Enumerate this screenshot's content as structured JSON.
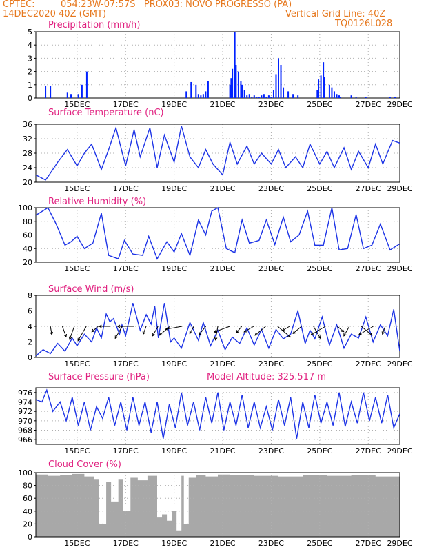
{
  "header": {
    "source": "CPTEC:",
    "location": "054:23W-07:57S   PROX03: NOVO PROGRESSO (PA)",
    "init_time": "14DEC2020 40Z (GMT)",
    "grid_note": "Vertical Grid Line: 40Z",
    "model_id": "TQ0126L028"
  },
  "colors": {
    "header": "#e6781e",
    "title": "#e0207f",
    "series": "#1c33e6",
    "bars": "#0022ff",
    "cloud": "#a8a8a8",
    "grid": "#b0b0b0"
  },
  "x_tick_labels": [
    "15DEC",
    "17DEC",
    "19DEC",
    "21DEC",
    "23DEC",
    "25DEC",
    "27DEC",
    "29DEC"
  ],
  "chart_data": [
    {
      "type": "bar",
      "title": "Precipitation (mm/h)",
      "ylim": [
        0,
        5
      ],
      "yticks": [
        0,
        1,
        2,
        3,
        4,
        5
      ],
      "x_unit": "days since 14DEC 00Z",
      "x": [
        0.4,
        0.6,
        1.3,
        1.45,
        1.75,
        1.9,
        2.1,
        6.2,
        6.4,
        6.6,
        6.7,
        6.8,
        6.9,
        7.0,
        7.1,
        8.0,
        8.05,
        8.1,
        8.2,
        8.25,
        8.35,
        8.45,
        8.5,
        8.6,
        8.7,
        8.8,
        8.9,
        9.0,
        9.1,
        9.2,
        9.3,
        9.4,
        9.5,
        9.6,
        9.7,
        9.8,
        9.9,
        10.0,
        10.1,
        10.2,
        10.4,
        10.6,
        10.8,
        11.6,
        11.65,
        11.75,
        11.85,
        11.9,
        12.1,
        12.2,
        12.3,
        12.4,
        12.5,
        12.55,
        13.0,
        13.2,
        13.6,
        14.6,
        14.8
      ],
      "values": [
        0.9,
        0.9,
        0.4,
        0.3,
        0.3,
        1.0,
        2.0,
        0.5,
        1.2,
        1.0,
        0.3,
        0.2,
        0.3,
        0.5,
        1.3,
        1.0,
        1.5,
        2.2,
        5.0,
        2.5,
        2.0,
        1.3,
        1.0,
        0.6,
        0.2,
        0.3,
        0.1,
        0.2,
        0.1,
        0.1,
        0.2,
        0.3,
        0.1,
        0.2,
        0.1,
        0.6,
        1.8,
        3.0,
        2.5,
        0.8,
        0.5,
        0.3,
        0.2,
        0.6,
        1.4,
        1.7,
        2.7,
        1.6,
        1.0,
        0.8,
        0.5,
        0.3,
        0.2,
        0.1,
        0.2,
        0.1,
        0.1,
        0.1,
        0.1
      ]
    },
    {
      "type": "line",
      "title": "Surface Temperature (nC)",
      "ylim": [
        20,
        36
      ],
      "yticks": [
        20,
        24,
        28,
        32,
        36
      ],
      "x": [
        0,
        0.4,
        0.55,
        0.9,
        1.3,
        1.7,
        2.0,
        2.3,
        2.7,
        3.0,
        3.3,
        3.7,
        4.05,
        4.3,
        4.7,
        5.0,
        5.3,
        5.7,
        6.0,
        6.35,
        6.7,
        7.0,
        7.3,
        7.7,
        8.0,
        8.3,
        8.7,
        9.0,
        9.3,
        9.7,
        10.0,
        10.3,
        10.7,
        11.0,
        11.3,
        11.7,
        12.0,
        12.3,
        12.7,
        13.0,
        13.3,
        13.7,
        14.0,
        14.3,
        14.7,
        15.0
      ],
      "values": [
        22,
        20.6,
        22,
        25.5,
        29,
        24.5,
        28,
        30.5,
        23.5,
        29,
        35,
        24.5,
        34.5,
        27,
        35,
        24,
        33,
        25.5,
        35.5,
        27,
        24,
        29,
        25,
        22,
        31,
        25,
        30,
        25,
        28,
        25,
        29,
        24,
        27,
        24,
        30.5,
        25,
        28.5,
        24,
        29.5,
        23.5,
        28.5,
        24,
        30.5,
        25,
        31.5,
        30.8
      ]
    },
    {
      "type": "line",
      "title": "Relative Humidity (%)",
      "ylim": [
        20,
        100
      ],
      "yticks": [
        20,
        40,
        60,
        80,
        100
      ],
      "x": [
        0,
        0.5,
        0.85,
        1.2,
        1.45,
        1.7,
        2.0,
        2.35,
        2.7,
        3.0,
        3.4,
        3.65,
        4.0,
        4.4,
        4.65,
        5.0,
        5.4,
        5.7,
        6.0,
        6.35,
        6.7,
        7.0,
        7.25,
        7.5,
        7.85,
        8.2,
        8.5,
        8.8,
        9.2,
        9.5,
        9.85,
        10.2,
        10.5,
        10.85,
        11.2,
        11.5,
        11.85,
        12.2,
        12.5,
        12.85,
        13.2,
        13.5,
        13.85,
        14.2,
        14.6,
        15.0
      ],
      "values": [
        89,
        100,
        75,
        45,
        50,
        58,
        40,
        48,
        92,
        30,
        25,
        52,
        32,
        30,
        58,
        25,
        50,
        35,
        62,
        30,
        82,
        60,
        95,
        100,
        40,
        34,
        82,
        48,
        52,
        82,
        46,
        86,
        50,
        60,
        95,
        45,
        45,
        100,
        38,
        40,
        90,
        40,
        45,
        76,
        38,
        47
      ]
    },
    {
      "type": "line",
      "title": "Surface Wind (m/s)",
      "ylim": [
        0,
        8
      ],
      "yticks": [
        0,
        2,
        4,
        6,
        8
      ],
      "x": [
        0,
        0.3,
        0.6,
        0.9,
        1.2,
        1.5,
        1.7,
        2.0,
        2.3,
        2.5,
        2.7,
        2.9,
        3.05,
        3.2,
        3.45,
        3.55,
        3.7,
        4.0,
        4.3,
        4.55,
        4.75,
        4.9,
        5.05,
        5.3,
        5.55,
        5.7,
        6.0,
        6.35,
        6.7,
        6.9,
        7.2,
        7.5,
        7.8,
        8.1,
        8.4,
        8.7,
        9.0,
        9.3,
        9.6,
        9.9,
        10.2,
        10.5,
        10.8,
        11.1,
        11.3,
        11.5,
        11.8,
        12.1,
        12.4,
        12.7,
        13.0,
        13.3,
        13.6,
        13.9,
        14.2,
        14.5,
        14.75,
        15.0
      ],
      "values": [
        0.2,
        1.0,
        0.5,
        1.8,
        0.8,
        2.5,
        1.5,
        3.0,
        2.0,
        3.8,
        2.5,
        5.6,
        4.6,
        5.0,
        3.0,
        4.2,
        2.8,
        7.0,
        3.5,
        5.5,
        4.3,
        6.6,
        2.5,
        7.0,
        2.0,
        2.5,
        1.2,
        4.5,
        2.2,
        4.5,
        1.5,
        3.5,
        1.0,
        2.6,
        1.8,
        3.8,
        1.6,
        3.6,
        1.2,
        3.6,
        2.4,
        3.0,
        6.0,
        1.8,
        3.5,
        2.4,
        5.2,
        1.6,
        4.2,
        1.2,
        3.0,
        2.5,
        5.2,
        2.0,
        4.2,
        2.8,
        6.2,
        0.8
      ],
      "vector_magnitudes_note": "wind direction arrows drawn along ~4 m/s line"
    },
    {
      "type": "line",
      "title": "Surface Pressure (hPa)",
      "annotation": "Model Altitude: 325.517  m",
      "ylim": [
        965,
        977
      ],
      "yticks": [
        966,
        968,
        970,
        972,
        974,
        976
      ],
      "x": [
        0,
        0.25,
        0.45,
        0.7,
        1.0,
        1.25,
        1.5,
        1.75,
        2.0,
        2.25,
        2.5,
        2.75,
        3.0,
        3.25,
        3.5,
        3.75,
        4.0,
        4.25,
        4.5,
        4.75,
        5.0,
        5.25,
        5.5,
        5.75,
        6.0,
        6.25,
        6.5,
        6.75,
        7.0,
        7.25,
        7.5,
        7.75,
        8.0,
        8.25,
        8.5,
        8.75,
        9.0,
        9.25,
        9.5,
        9.75,
        10.0,
        10.25,
        10.5,
        10.75,
        11.0,
        11.25,
        11.5,
        11.75,
        12.0,
        12.25,
        12.5,
        12.75,
        13.0,
        13.25,
        13.5,
        13.75,
        14.0,
        14.25,
        14.5,
        14.75,
        15.0
      ],
      "values": [
        974.5,
        974,
        976.5,
        972,
        974,
        970,
        975,
        969,
        974,
        968,
        973,
        970.5,
        975,
        969,
        974,
        968,
        975,
        969,
        974,
        967.5,
        974,
        966.2,
        973.5,
        968.5,
        976,
        969,
        974,
        968,
        975,
        969.5,
        976,
        968,
        974,
        969,
        975.5,
        968.5,
        974,
        968.5,
        973,
        968,
        974.5,
        969,
        975,
        966.2,
        974,
        968.5,
        975.5,
        969.5,
        974,
        969,
        976,
        968.8,
        974,
        969.5,
        976,
        970,
        975,
        969.5,
        975.5,
        968.5,
        971.5
      ]
    },
    {
      "type": "area",
      "title": "Cloud Cover (%)",
      "ylim": [
        0,
        100
      ],
      "yticks": [
        0,
        20,
        40,
        60,
        80,
        100
      ],
      "x": [
        0,
        0.5,
        1.0,
        1.5,
        2.0,
        2.4,
        2.6,
        2.9,
        3.1,
        3.4,
        3.6,
        3.9,
        4.2,
        4.6,
        5.0,
        5.2,
        5.4,
        5.6,
        5.8,
        6.0,
        6.1,
        6.3,
        6.6,
        7.0,
        7.5,
        8.0,
        9.0,
        10.0,
        11.0,
        12.0,
        13.0,
        14.0,
        15.0
      ],
      "values": [
        97,
        95,
        96,
        98,
        94,
        90,
        20,
        85,
        55,
        90,
        40,
        92,
        88,
        95,
        30,
        35,
        25,
        40,
        10,
        95,
        20,
        92,
        96,
        94,
        97,
        96,
        95,
        94,
        96,
        95,
        96,
        94,
        95
      ]
    }
  ]
}
